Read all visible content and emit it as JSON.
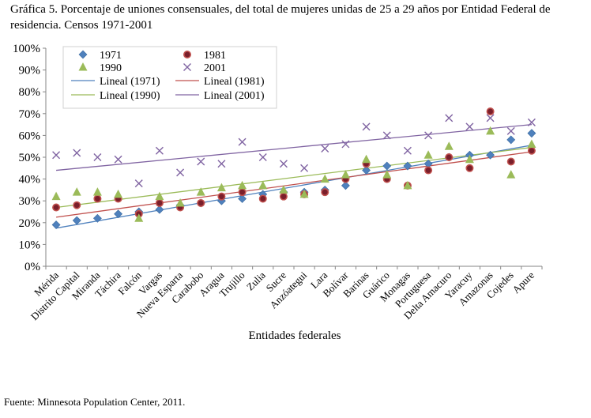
{
  "title": "Gráfica 5. Porcentaje de uniones consensuales, del total de mujeres unidas de 25 a 29 años por Entidad Federal de residencia. Censos 1971-2001",
  "source": "Fuente: Minnesota Population Center, 2011.",
  "chart_data": {
    "type": "scatter",
    "xlabel": "Entidades federales",
    "ylabel": "",
    "ylim": [
      0,
      100
    ],
    "yticks": [
      "0%",
      "10%",
      "20%",
      "30%",
      "40%",
      "50%",
      "60%",
      "70%",
      "80%",
      "90%",
      "100%"
    ],
    "grid": false,
    "legend_position": "top-left",
    "categories": [
      "Mérida",
      "Distrito Capital",
      "Miranda",
      "Táchira",
      "Falcón",
      "Vargas",
      "Nueva Esparta",
      "Carabobo",
      "Aragua",
      "Trujillo",
      "Zulia",
      "Sucre",
      "Anzóategui",
      "Lara",
      "Bolívar",
      "Barinas",
      "Guárico",
      "Monagas",
      "Portuguesa",
      "Delta Amacuro",
      "Yaracuy",
      "Amazonas",
      "Cojedes",
      "Apure"
    ],
    "series": [
      {
        "name": "1971",
        "marker": "diamond",
        "color": "#4f81bd",
        "values": [
          19,
          21,
          22,
          24,
          25,
          26,
          28,
          29,
          30,
          31,
          33,
          34,
          34,
          35,
          37,
          44,
          46,
          46,
          47,
          50,
          51,
          51,
          58,
          61
        ]
      },
      {
        "name": "1981",
        "marker": "circle",
        "color": "#c0504d",
        "values": [
          27,
          28,
          31,
          31,
          24,
          29,
          27,
          29,
          32,
          34,
          31,
          32,
          33,
          34,
          40,
          47,
          40,
          37,
          44,
          50,
          45,
          71,
          48,
          53
        ]
      },
      {
        "name": "1990",
        "marker": "triangle",
        "color": "#9bbb59",
        "values": [
          32,
          34,
          34,
          33,
          22,
          32,
          29,
          34,
          36,
          37,
          37,
          35,
          33,
          40,
          42,
          49,
          42,
          37,
          51,
          55,
          49,
          62,
          42,
          56
        ]
      },
      {
        "name": "2001",
        "marker": "x",
        "color": "#8064a2",
        "values": [
          51,
          52,
          50,
          49,
          38,
          53,
          43,
          48,
          47,
          57,
          50,
          47,
          45,
          54,
          56,
          64,
          60,
          53,
          60,
          68,
          64,
          68,
          62,
          66
        ]
      }
    ],
    "trendlines": [
      {
        "name": "Lineal (1971)",
        "color": "#4f81bd",
        "start": 17.5,
        "end": 55.5
      },
      {
        "name": "Lineal (1981)",
        "color": "#c0504d",
        "start": 22.5,
        "end": 52.5
      },
      {
        "name": "Lineal (1990)",
        "color": "#9bbb59",
        "start": 27,
        "end": 54.5
      },
      {
        "name": "Lineal (2001)",
        "color": "#8064a2",
        "start": 44,
        "end": 65
      }
    ]
  }
}
